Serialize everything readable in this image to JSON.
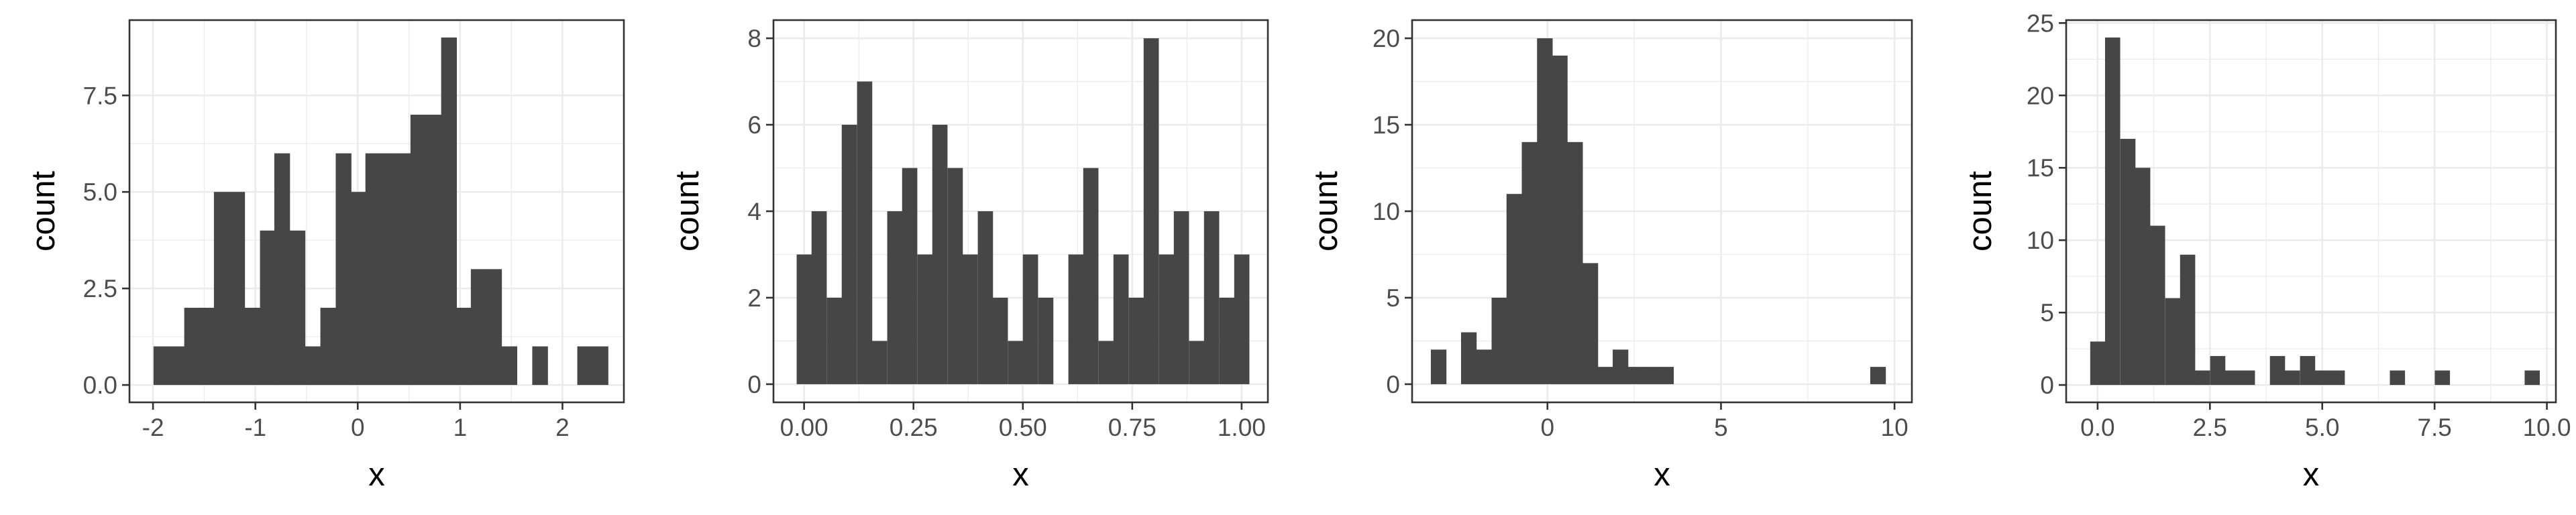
{
  "chart_data": [
    {
      "type": "bar",
      "subtype": "histogram",
      "xlabel": "x",
      "ylabel": "count",
      "xticks": [
        "-2",
        "-1",
        "0",
        "1",
        "2"
      ],
      "yticks": [
        "0.0",
        "2.5",
        "5.0",
        "7.5"
      ],
      "xlim": [
        -2.23,
        2.6
      ],
      "ylim": [
        -0.45,
        9.45
      ],
      "bin_centers": [
        -1.92,
        -1.77,
        -1.62,
        -1.48,
        -1.33,
        -1.18,
        -1.03,
        -0.88,
        -0.74,
        -0.59,
        -0.44,
        -0.29,
        -0.14,
        0.0,
        0.15,
        0.3,
        0.45,
        0.59,
        0.74,
        0.89,
        1.04,
        1.18,
        1.33,
        1.48,
        1.63,
        1.78,
        1.92,
        2.07,
        2.22,
        2.37
      ],
      "values": [
        1,
        1,
        2,
        2,
        5,
        5,
        2,
        4,
        6,
        4,
        1,
        2,
        6,
        5,
        6,
        6,
        6,
        7,
        7,
        9,
        2,
        3,
        3,
        1,
        0,
        1,
        0,
        0,
        1,
        1
      ],
      "grid": true
    },
    {
      "type": "bar",
      "subtype": "histogram",
      "xlabel": "x",
      "ylabel": "count",
      "xticks": [
        "0.00",
        "0.25",
        "0.50",
        "0.75",
        "1.00"
      ],
      "yticks": [
        "0",
        "2",
        "4",
        "6",
        "8"
      ],
      "xlim": [
        -0.07,
        1.06
      ],
      "ylim": [
        -0.42,
        8.42
      ],
      "bin_centers": [
        0.0,
        0.034,
        0.069,
        0.103,
        0.138,
        0.172,
        0.207,
        0.241,
        0.276,
        0.31,
        0.345,
        0.379,
        0.414,
        0.448,
        0.483,
        0.517,
        0.552,
        0.586,
        0.621,
        0.655,
        0.69,
        0.724,
        0.759,
        0.793,
        0.828,
        0.862,
        0.897,
        0.931,
        0.966,
        1.0
      ],
      "values": [
        3,
        4,
        2,
        6,
        7,
        1,
        4,
        5,
        3,
        6,
        5,
        3,
        4,
        2,
        1,
        3,
        2,
        0,
        3,
        5,
        1,
        3,
        2,
        8,
        3,
        4,
        1,
        4,
        2,
        3
      ],
      "grid": true
    },
    {
      "type": "bar",
      "subtype": "histogram",
      "xlabel": "x",
      "ylabel": "count",
      "xticks": [
        "0",
        "5",
        "10"
      ],
      "yticks": [
        "0",
        "5",
        "10",
        "15",
        "20"
      ],
      "xlim": [
        -3.9,
        10.5
      ],
      "ylim": [
        -1.05,
        21.05
      ],
      "bin_centers": [
        -3.14,
        -2.7,
        -2.27,
        -1.83,
        -1.39,
        -0.96,
        -0.52,
        -0.08,
        0.35,
        0.79,
        1.23,
        1.66,
        2.1,
        2.54,
        2.97,
        3.41,
        3.85,
        4.28,
        4.72,
        5.16,
        5.59,
        6.03,
        6.47,
        6.9,
        7.34,
        7.78,
        8.21,
        8.65,
        9.09,
        9.52
      ],
      "values": [
        2,
        0,
        3,
        2,
        5,
        11,
        14,
        20,
        19,
        14,
        7,
        1,
        2,
        1,
        1,
        1,
        0,
        0,
        0,
        0,
        0,
        0,
        0,
        0,
        0,
        0,
        0,
        0,
        0,
        1
      ],
      "grid": true
    },
    {
      "type": "bar",
      "subtype": "histogram",
      "xlabel": "x",
      "ylabel": "count",
      "xticks": [
        "0.0",
        "2.5",
        "5.0",
        "7.5",
        "10.0"
      ],
      "yticks": [
        "0",
        "5",
        "10",
        "15",
        "20",
        "25"
      ],
      "xlim": [
        -0.7,
        10.2
      ],
      "ylim": [
        -1.2,
        25.2
      ],
      "bin_centers": [
        0.0,
        0.33,
        0.67,
        1.0,
        1.33,
        1.67,
        2.0,
        2.33,
        2.67,
        3.0,
        3.33,
        3.67,
        4.0,
        4.33,
        4.67,
        5.0,
        5.33,
        5.67,
        6.0,
        6.33,
        6.67,
        7.0,
        7.33,
        7.67,
        8.0,
        8.33,
        8.67,
        9.0,
        9.33,
        9.67
      ],
      "values": [
        3,
        24,
        17,
        15,
        11,
        6,
        9,
        1,
        2,
        1,
        1,
        0,
        2,
        1,
        2,
        1,
        1,
        0,
        0,
        0,
        1,
        0,
        0,
        1,
        0,
        0,
        0,
        0,
        0,
        1
      ],
      "grid": true
    }
  ]
}
